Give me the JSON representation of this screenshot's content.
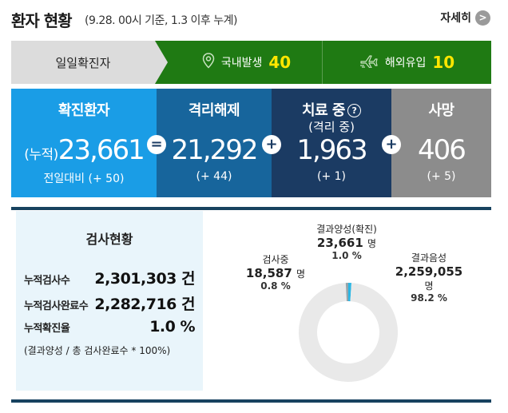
{
  "header": {
    "title": "환자 현황",
    "subtitle": "(9.28. 00시 기준, 1.3 이후 누계)",
    "more_label": "자세히",
    "more_icon": "chevron-right-icon"
  },
  "daily": {
    "label": "일일확진자",
    "domestic": {
      "icon": "location-pin-icon",
      "label": "국내발생",
      "value": "40"
    },
    "overseas": {
      "icon": "airplane-icon",
      "label": "해외유입",
      "value": "10"
    }
  },
  "stats": {
    "confirmed": {
      "title": "확진환자",
      "prefix": "(누적)",
      "value": "23,661",
      "change": "전일대비 (+ 50)",
      "color": "#1a9de6"
    },
    "released": {
      "title": "격리해제",
      "value": "21,292",
      "change": "(+ 44)",
      "color": "#17659c"
    },
    "treatment": {
      "title": "치료 중",
      "subtitle": "(격리 중)",
      "help": "?",
      "value": "1,963",
      "change": "(+ 1)",
      "color": "#1b3b63"
    },
    "deaths": {
      "title": "사망",
      "value": "406",
      "change": "(+ 5)",
      "color": "#8c8c8c"
    },
    "operators": {
      "equals": "=",
      "plus": "+"
    }
  },
  "tests": {
    "title": "검사현황",
    "rows": [
      {
        "label": "누적검사수",
        "value": "2,301,303 건"
      },
      {
        "label": "누적검사완료수",
        "value": "2,282,716 건"
      },
      {
        "label": "누적확진율",
        "value": "1.0 %"
      }
    ],
    "note": "(결과양성 / 총 검사완료수 * 100%)"
  },
  "chart_data": {
    "type": "pie",
    "labels": [
      "결과양성(확진)",
      "결과음성",
      "검사중"
    ],
    "values": [
      23661,
      2259055,
      18587
    ],
    "value_labels": [
      "23,661",
      "2,259,055",
      "18,587"
    ],
    "unit": "명",
    "percents": [
      1.0,
      98.2,
      0.8
    ],
    "percent_labels": [
      "1.0 %",
      "98.2 %",
      "0.8 %"
    ],
    "colors": [
      "#2ab6e4",
      "#e9e9e9",
      "#97a4aa"
    ],
    "donut": true
  },
  "colors": {
    "daily_green": "#1f7a13",
    "daily_yellow": "#ffe600",
    "rule": "#17425f",
    "panel_bg": "#e9f5fb"
  }
}
